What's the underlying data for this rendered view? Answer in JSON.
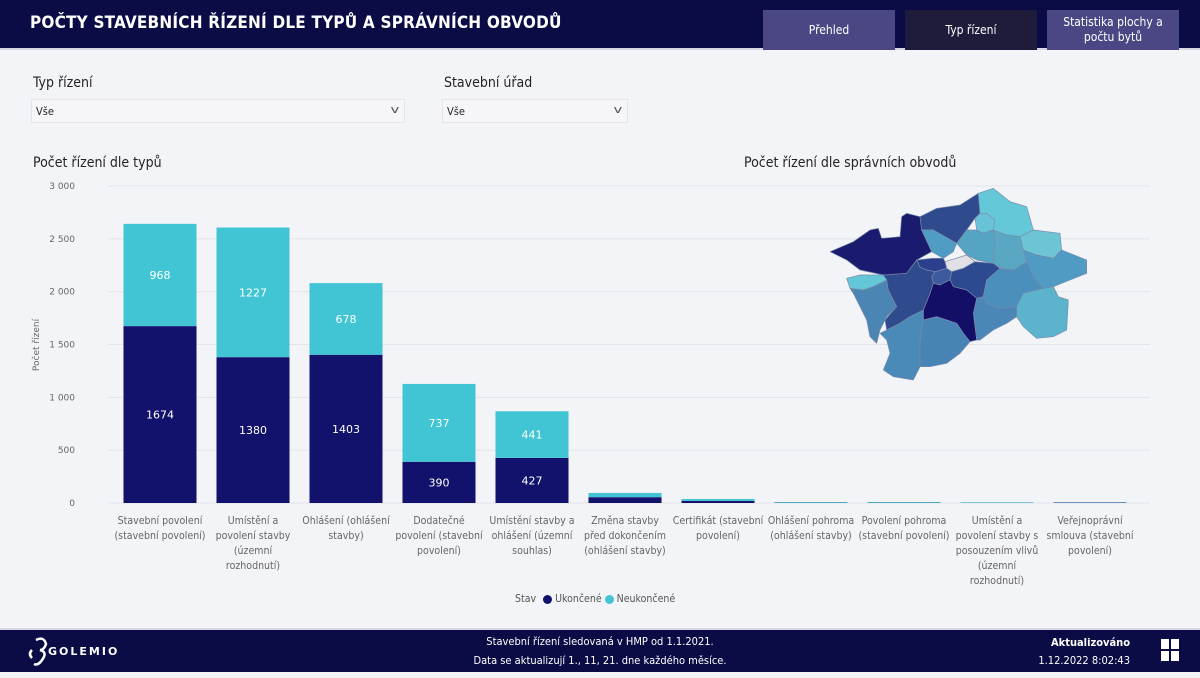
{
  "header": {
    "title": "POČTY STAVEBNÍCH ŘÍZENÍ DLE TYPŮ A SPRÁVNÍCH OBVODŮ",
    "nav": [
      {
        "label": "Přehled",
        "active": false
      },
      {
        "label": "Typ řízení",
        "active": true
      },
      {
        "label": "Statistika plochy a počtu bytů",
        "active": false
      }
    ]
  },
  "filters": {
    "typ": {
      "label": "Typ řízení",
      "value": "Vše"
    },
    "urad": {
      "label": "Stavební úřad",
      "value": "Vše"
    }
  },
  "bar_title": "Počet řízení dle typů",
  "map_title": "Počet řízení dle správních obvodů",
  "colors": {
    "ukoncene": "#12116b",
    "neukoncene": "#41c4d3",
    "header": "#0b0b45"
  },
  "chart_data": {
    "type": "bar",
    "stacked": true,
    "ylabel": "Počet řízení",
    "ylim": [
      0,
      3000
    ],
    "yticks": [
      "0",
      "500",
      "1 000",
      "1 500",
      "2 000",
      "2 500",
      "3 000"
    ],
    "categories": [
      "Stavební povolení (stavební povolení)",
      "Umístění a povolení stavby (územní rozhodnutí)",
      "Ohlášení (ohlášení stavby)",
      "Dodatečné povolení (stavební povolení)",
      "Umístění stavby a ohlášení (územní souhlas)",
      "Změna stavby před dokončením (ohlášení stavby)",
      "Certifikát (stavební povolení)",
      "Ohlášení pohroma (ohlášení stavby)",
      "Povolení pohroma (stavební povolení)",
      "Umístění a povolení stavby s posouzením vlivů (územní rozhodnutí)",
      "Veřejnoprávní smlouva (stavební povolení)"
    ],
    "series": [
      {
        "name": "Ukončené",
        "values": [
          1674,
          1380,
          1403,
          390,
          427,
          55,
          20,
          3,
          3,
          2,
          4
        ]
      },
      {
        "name": "Neukončené",
        "values": [
          968,
          1227,
          678,
          737,
          441,
          40,
          18,
          6,
          6,
          5,
          3
        ]
      }
    ],
    "legend_title": "Stav",
    "legend_position": "bottom",
    "grid": true
  },
  "footer": {
    "line1": "Stavební řízení sledovaná v HMP od 1.1.2021.",
    "line2": "Data se aktualizují 1., 11, 21. dne každého měsíce.",
    "updated_label": "Aktualizováno",
    "updated_value": "1.12.2022 8:02:43",
    "logo": "GOLEMIO"
  }
}
